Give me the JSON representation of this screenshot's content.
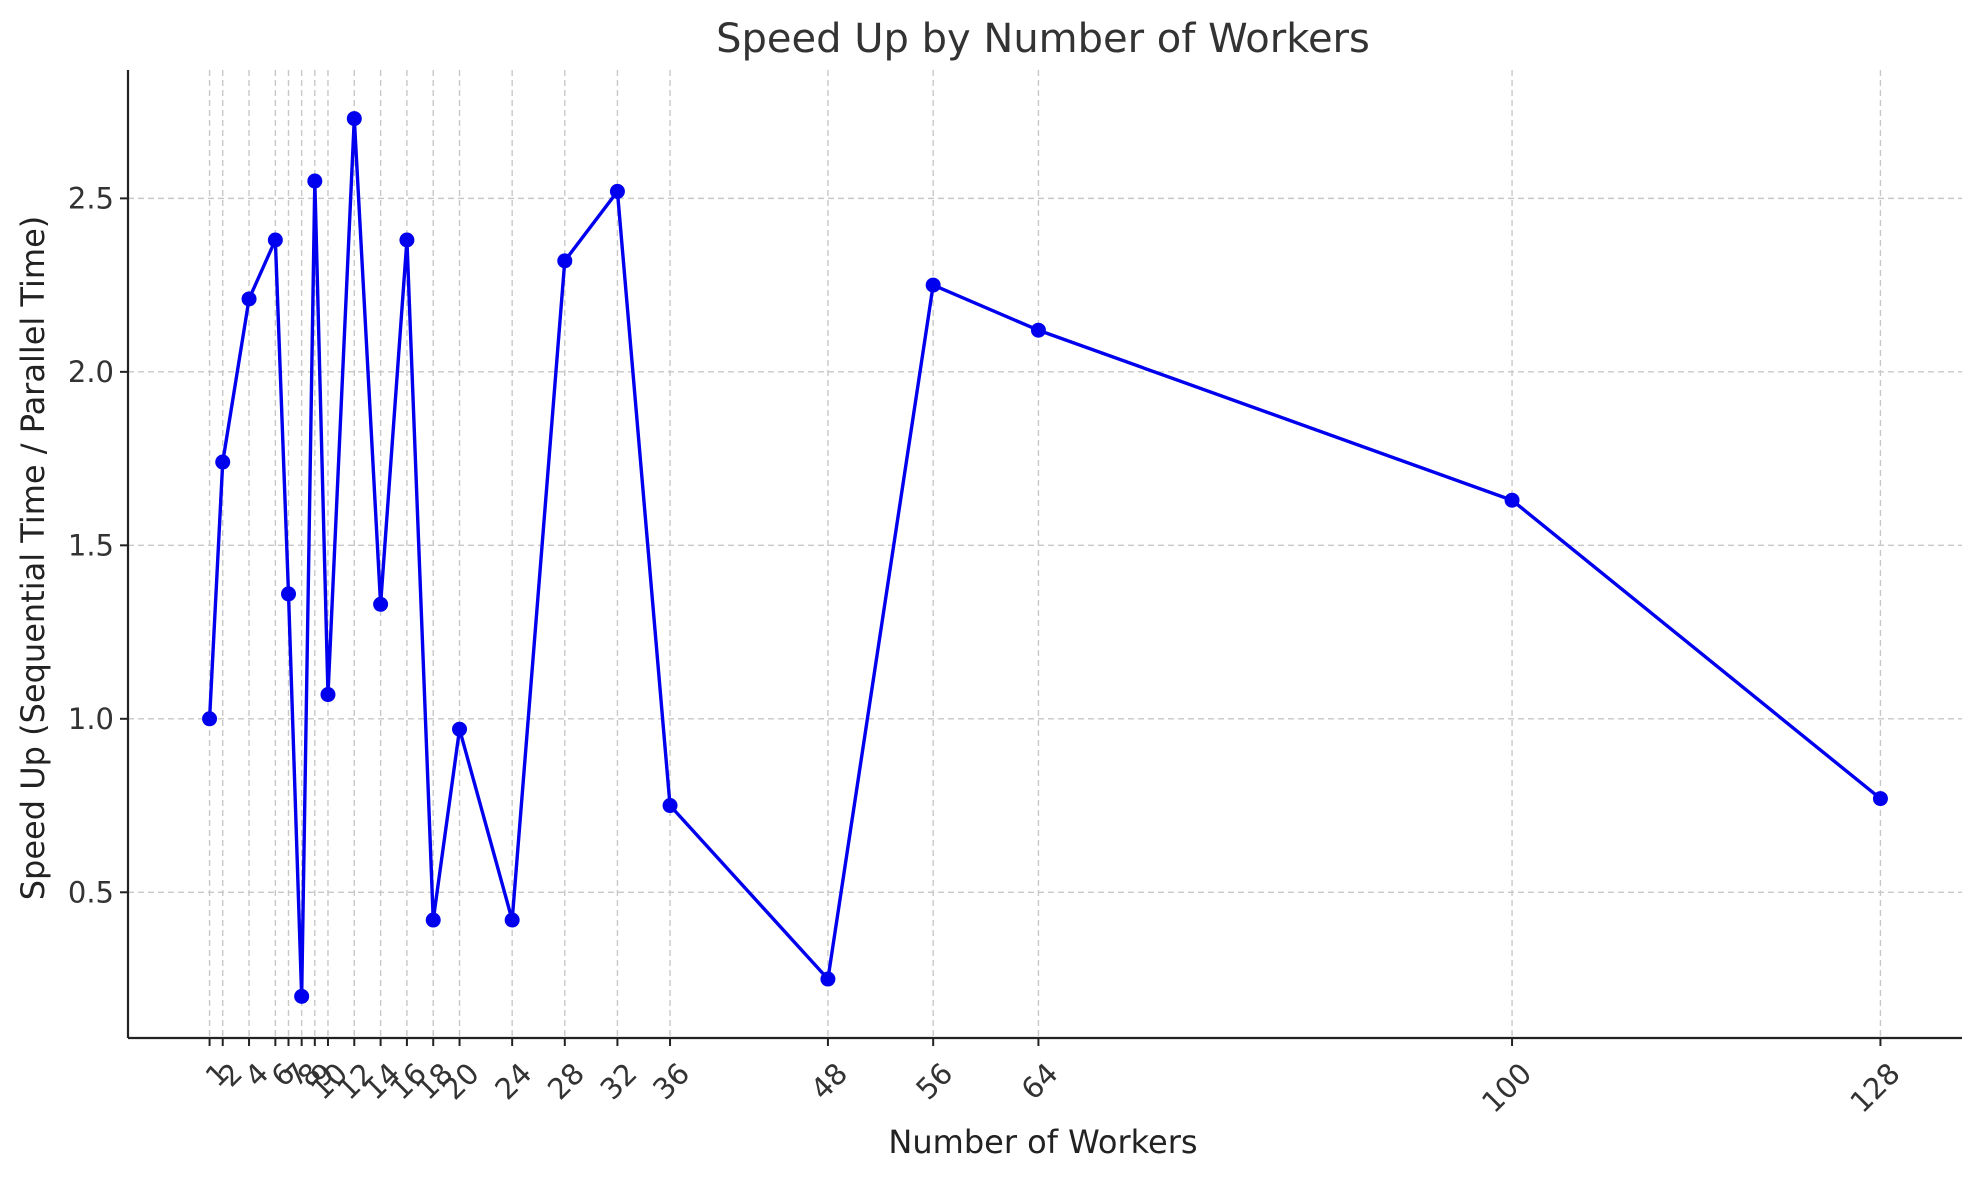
{
  "chart_data": {
    "type": "line",
    "title": "Speed Up by Number of Workers",
    "xlabel": "Number of Workers",
    "ylabel": "Speed Up (Sequential Time / Parallel Time)",
    "x": [
      1,
      2,
      4,
      6,
      7,
      8,
      9,
      10,
      12,
      14,
      16,
      18,
      20,
      24,
      28,
      32,
      36,
      48,
      56,
      64,
      100,
      128
    ],
    "x_tick_labels": [
      "1",
      "2",
      "4",
      "6",
      "7",
      "8",
      "9",
      "10",
      "12",
      "14",
      "16",
      "18",
      "20",
      "24",
      "28",
      "32",
      "36",
      "48",
      "56",
      "64",
      "100",
      "128"
    ],
    "series": [
      {
        "values": [
          1.0,
          1.74,
          2.21,
          2.38,
          1.36,
          0.2,
          2.55,
          1.07,
          2.73,
          1.33,
          2.38,
          0.42,
          0.97,
          0.42,
          2.32,
          2.52,
          0.75,
          0.25,
          2.25,
          2.12,
          1.63,
          0.77
        ],
        "color": "#0000ee"
      }
    ],
    "yticks": [
      0.5,
      1.0,
      1.5,
      2.0,
      2.5
    ],
    "ytick_labels": [
      "0.5",
      "1.0",
      "1.5",
      "2.0",
      "2.5"
    ],
    "xlim": [
      -5.2,
      134.2
    ],
    "ylim": [
      0.08,
      2.87
    ],
    "grid": true,
    "x_tick_rotation": 45
  }
}
